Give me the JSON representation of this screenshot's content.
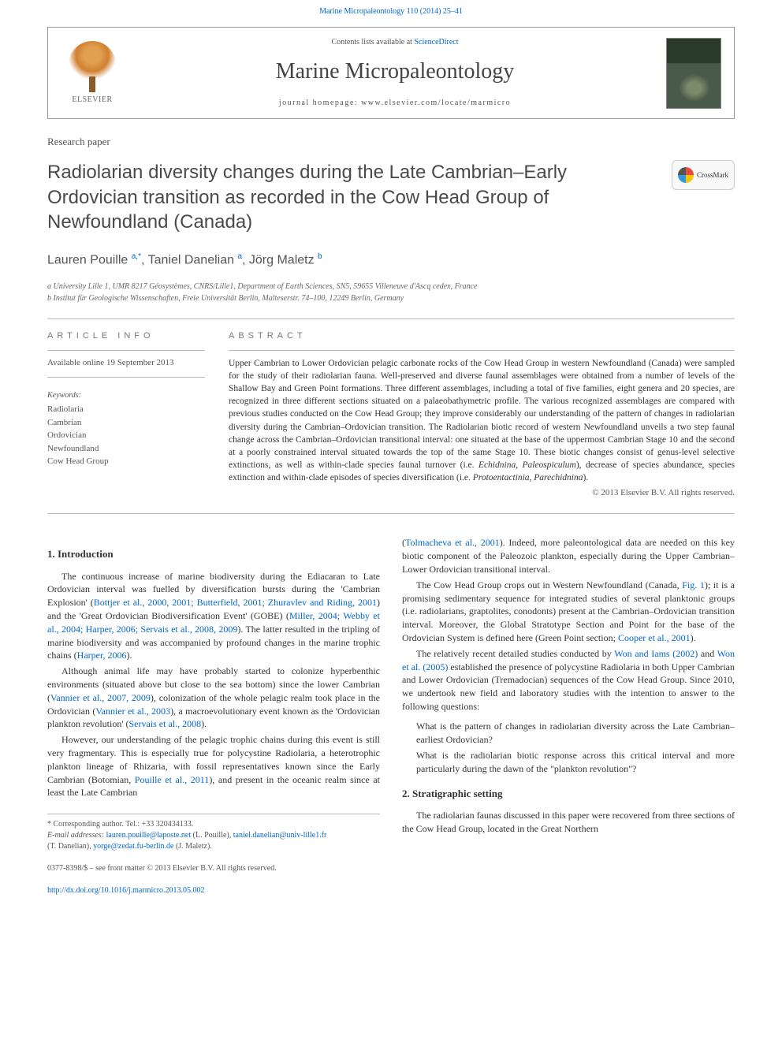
{
  "journal_ref": "Marine Micropaleontology 110 (2014) 25–41",
  "header": {
    "contents_prefix": "Contents lists available at ",
    "contents_link": "ScienceDirect",
    "journal_name": "Marine Micropaleontology",
    "homepage_prefix": "journal homepage: ",
    "homepage_url": "www.elsevier.com/locate/marmicro",
    "publisher": "ELSEVIER"
  },
  "paper_type": "Research paper",
  "title": "Radiolarian diversity changes during the Late Cambrian–Early Ordovician transition as recorded in the Cow Head Group of Newfoundland (Canada)",
  "crossmark_label": "CrossMark",
  "authors_html": "Lauren Pouille <sup>a,*</sup>, Taniel Danelian <sup>a</sup>, Jörg Maletz <sup>b</sup>",
  "affiliations": [
    "a University Lille 1, UMR 8217 Géosystèmes, CNRS/Lille1, Department of Earth Sciences, SN5, 59655 Villeneuve d'Ascq cedex, France",
    "b Institut für Geologische Wissenschaften, Freie Universität Berlin, Malteserstr. 74–100, 12249 Berlin, Germany"
  ],
  "info": {
    "label": "ARTICLE INFO",
    "available": "Available online 19 September 2013",
    "keywords_label": "Keywords:",
    "keywords": [
      "Radiolaria",
      "Cambrian",
      "Ordovician",
      "Newfoundland",
      "Cow Head Group"
    ]
  },
  "abstract": {
    "label": "ABSTRACT",
    "text": "Upper Cambrian to Lower Ordovician pelagic carbonate rocks of the Cow Head Group in western Newfoundland (Canada) were sampled for the study of their radiolarian fauna. Well-preserved and diverse faunal assemblages were obtained from a number of levels of the Shallow Bay and Green Point formations. Three different assemblages, including a total of five families, eight genera and 20 species, are recognized in three different sections situated on a palaeobathymetric profile. The various recognized assemblages are compared with previous studies conducted on the Cow Head Group; they improve considerably our understanding of the pattern of changes in radiolarian diversity during the Cambrian–Ordovician transition. The Radiolarian biotic record of western Newfoundland unveils a two step faunal change across the Cambrian–Ordovician transitional interval: one situated at the base of the uppermost Cambrian Stage 10 and the second at a poorly constrained interval situated towards the top of the same Stage 10. These biotic changes consist of genus-level selective extinctions, as well as within-clade species faunal turnover (i.e. Echidnina, Paleospiculum), decrease of species abundance, species extinction and within-clade episodes of species diversification (i.e. Protoentactinia, Parechidnina).",
    "copyright": "© 2013 Elsevier B.V. All rights reserved."
  },
  "body": {
    "h_intro": "1. Introduction",
    "intro_p1_a": "The continuous increase of marine biodiversity during the Ediacaran to Late Ordovician interval was fuelled by diversification bursts during the 'Cambrian Explosion' (",
    "intro_p1_cite1": "Bottjer et al., 2000, 2001; Butterfield, 2001; Zhuravlev and Riding, 2001",
    "intro_p1_b": ") and the 'Great Ordovician Biodiversification Event' (GOBE) (",
    "intro_p1_cite2": "Miller, 2004; Webby et al., 2004; Harper, 2006; Servais et al., 2008, 2009",
    "intro_p1_c": "). The latter resulted in the tripling of marine biodiversity and was accompanied by profound changes in the marine trophic chains (",
    "intro_p1_cite3": "Harper, 2006",
    "intro_p1_d": ").",
    "intro_p2_a": "Although animal life may have probably started to colonize hyperbenthic environments (situated above but close to the sea bottom) since the lower Cambrian (",
    "intro_p2_cite1": "Vannier et al., 2007, 2009",
    "intro_p2_b": "), colonization of the whole pelagic realm took place in the Ordovician (",
    "intro_p2_cite2": "Vannier et al., 2003",
    "intro_p2_c": "), a macroevolutionary event known as the 'Ordovician plankton revolution' (",
    "intro_p2_cite3": "Servais et al., 2008",
    "intro_p2_d": ").",
    "intro_p3_a": "However, our understanding of the pelagic trophic chains during this event is still very fragmentary. This is especially true for polycystine Radiolaria, a heterotrophic plankton lineage of Rhizaria, with fossil representatives known since the Early Cambrian (Botomian, ",
    "intro_p3_cite1": "Pouille et al., 2011",
    "intro_p3_b": "), and present in the oceanic realm since at least the Late Cambrian",
    "intro_p3_c_pre": "(",
    "intro_p3_cite2": "Tolmacheva et al., 2001",
    "intro_p3_c": "). Indeed, more paleontological data are needed on this key biotic component of the Paleozoic plankton, especially during the Upper Cambrian–Lower Ordovician transitional interval.",
    "intro_p4_a": "The Cow Head Group crops out in Western Newfoundland (Canada, ",
    "intro_p4_cite1": "Fig. 1",
    "intro_p4_b": "); it is a promising sedimentary sequence for integrated studies of several planktonic groups (i.e. radiolarians, graptolites, conodonts) present at the Cambrian–Ordovician transition interval. Moreover, the Global Stratotype Section and Point for the base of the Ordovician System is defined here (Green Point section; ",
    "intro_p4_cite2": "Cooper et al., 2001",
    "intro_p4_c": ").",
    "intro_p5_a": "The relatively recent detailed studies conducted by ",
    "intro_p5_cite1": "Won and Iams (2002)",
    "intro_p5_b": " and ",
    "intro_p5_cite2": "Won et al. (2005)",
    "intro_p5_c": " established the presence of polycystine Radiolaria in both Upper Cambrian and Lower Ordovician (Tremadocian) sequences of the Cow Head Group. Since 2010, we undertook new field and laboratory studies with the intention to answer to the following questions:",
    "q1": "What is the pattern of changes in radiolarian diversity across the Late Cambrian–earliest Ordovician?",
    "q2": "What is the radiolarian biotic response across this critical interval and more particularly during the dawn of the \"plankton revolution\"?",
    "h_strat": "2. Stratigraphic setting",
    "strat_p1": "The radiolarian faunas discussed in this paper were recovered from three sections of the Cow Head Group, located in the Great Northern"
  },
  "footer": {
    "corr": "* Corresponding author. Tel.: +33 320434133.",
    "emails_label": "E-mail addresses: ",
    "email1": "lauren.pouille@laposte.net",
    "email1_who": " (L. Pouille), ",
    "email2": "taniel.danelian@univ-lille1.fr",
    "email2_who": " (T. Danelian), ",
    "email3": "yorge@zedat.fu-berlin.de",
    "email3_who": " (J. Maletz).",
    "issn": "0377-8398/$ – see front matter © 2013 Elsevier B.V. All rights reserved.",
    "doi": "http://dx.doi.org/10.1016/j.marmicro.2013.05.002"
  },
  "colors": {
    "link": "#0066cc",
    "text": "#333333",
    "muted": "#555555",
    "rule": "#bbbbbb"
  }
}
